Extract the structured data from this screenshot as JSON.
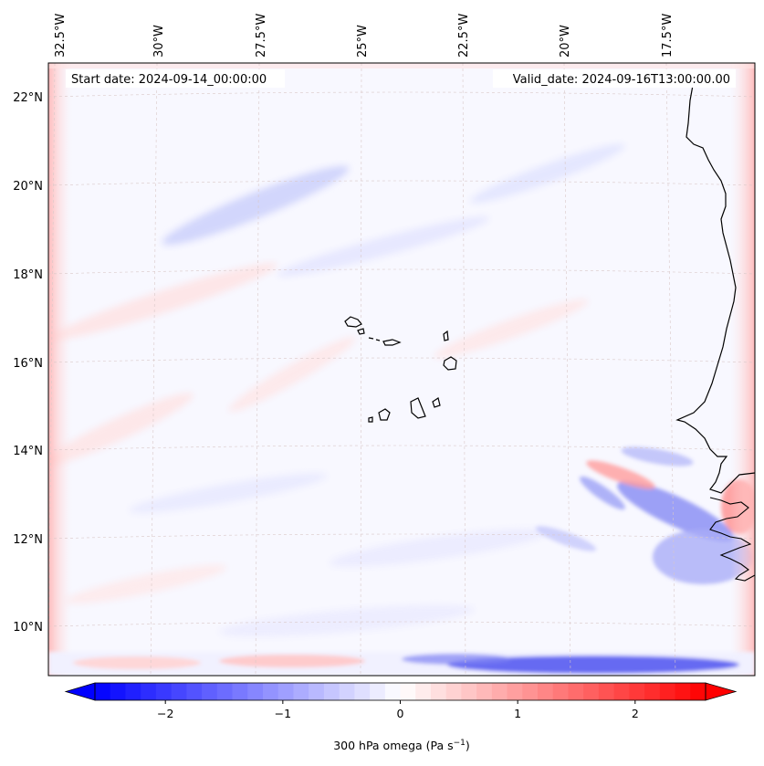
{
  "map": {
    "start_date": "Start date: 2024-09-14_00:00:00",
    "valid_date": "Valid_date: 2024-09-16T13:00:00.00",
    "lon_labels": [
      "32.5°W",
      "30°W",
      "27.5°W",
      "25°W",
      "22.5°W",
      "20°W",
      "17.5°W"
    ],
    "lat_labels": [
      "22°N",
      "20°N",
      "18°N",
      "16°N",
      "14°N",
      "12°N",
      "10°N"
    ]
  },
  "colorbar": {
    "ticks": [
      "−2",
      "−1",
      "0",
      "1",
      "2"
    ],
    "tick_values": [
      -2,
      -1,
      0,
      1,
      2
    ],
    "range": [
      -2.6,
      2.6
    ],
    "label": "300 hPa omega (Pa s",
    "label_sup": "−1",
    "label_end": ")",
    "colors": {
      "negative": "#0000ff",
      "zero": "#ffffff",
      "positive": "#ff0000"
    }
  }
}
